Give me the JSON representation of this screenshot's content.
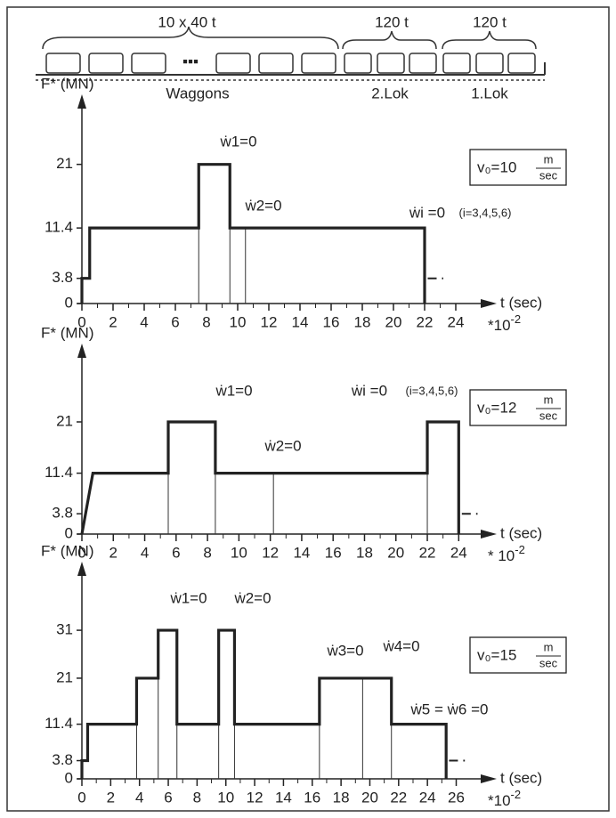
{
  "diagram": {
    "labels": [
      "10 x 40 t",
      "120 t",
      "120 t"
    ],
    "captions": [
      "Waggons",
      "2.Lok",
      "1.Lok"
    ]
  },
  "chart_data": [
    {
      "type": "line",
      "y_label": "F* (MN)",
      "x_label": "t (sec)",
      "x_note": "*10",
      "x_note_exp": "-2",
      "box": {
        "text": "v₀=10",
        "num": "m",
        "den": "sec"
      },
      "xlim": [
        0,
        25.6
      ],
      "xticks": [
        0,
        2,
        4,
        6,
        8,
        10,
        12,
        14,
        16,
        18,
        20,
        22,
        24
      ],
      "ylim": [
        0,
        27
      ],
      "yticks": [
        0,
        3.8,
        11.4,
        21
      ],
      "series": [
        {
          "x": [
            0,
            0,
            0.5,
            0.5,
            7.5,
            7.5,
            9.5,
            9.5,
            22,
            22
          ],
          "values": [
            0,
            3.8,
            3.8,
            11.4,
            11.4,
            21,
            21,
            11.4,
            11.4,
            0
          ],
          "style": "solid"
        },
        {
          "x": [
            22.2,
            23.2
          ],
          "values": [
            3.8,
            3.8
          ],
          "style": "dashed"
        }
      ],
      "guides_x": [
        7.5,
        9.5,
        10.5
      ],
      "annotations": [
        "ẇ1=0",
        "ẇ2=0",
        "ẇi =0",
        "(i=3,4,5,6)"
      ]
    },
    {
      "type": "line",
      "y_label": "F* (MN)",
      "x_label": "t (sec)",
      "x_note": "* 10",
      "x_note_exp": "-2",
      "box": {
        "text": "v₀=12",
        "num": "m",
        "den": "sec"
      },
      "xlim": [
        0,
        25.4
      ],
      "xticks": [
        0,
        2,
        4,
        6,
        8,
        10,
        12,
        14,
        16,
        18,
        20,
        22,
        24
      ],
      "ylim": [
        0,
        30
      ],
      "yticks": [
        0,
        3.8,
        11.4,
        21
      ],
      "series": [
        {
          "x": [
            0,
            0.7,
            5.5,
            5.5,
            8.5,
            8.5,
            22,
            22,
            24,
            24
          ],
          "values": [
            0,
            11.4,
            11.4,
            21,
            21,
            11.4,
            11.4,
            21,
            21,
            0
          ],
          "style": "solid"
        },
        {
          "x": [
            24.2,
            25.2
          ],
          "values": [
            3.8,
            3.8
          ],
          "style": "dashed"
        }
      ],
      "guides_x": [
        5.5,
        8.5,
        12.2,
        22
      ],
      "annotations": [
        "ẇ1=0",
        "ẇ2=0",
        "ẇi =0",
        "(i=3,4,5,6)"
      ]
    },
    {
      "type": "line",
      "y_label": "F* (MN)",
      "x_label": "t (sec)",
      "x_note": "*10",
      "x_note_exp": "-2",
      "box": {
        "text": "v₀=15",
        "num": "m",
        "den": "sec"
      },
      "xlim": [
        0,
        27.7
      ],
      "xticks": [
        0,
        2,
        4,
        6,
        8,
        10,
        12,
        14,
        16,
        18,
        20,
        22,
        24,
        26
      ],
      "ylim": [
        0,
        39
      ],
      "yticks": [
        0,
        3.8,
        11.4,
        21,
        31
      ],
      "series": [
        {
          "x": [
            0,
            0,
            0.4,
            0.4,
            3.8,
            3.8,
            5.3,
            5.3,
            6.6,
            6.6,
            9.5,
            9.5,
            10.6,
            10.6,
            16.5,
            16.5,
            21.5,
            21.5,
            25.3,
            25.3
          ],
          "values": [
            0,
            3.8,
            3.8,
            11.4,
            11.4,
            21,
            21,
            31,
            31,
            11.4,
            11.4,
            31,
            31,
            11.4,
            11.4,
            21,
            21,
            11.4,
            11.4,
            0
          ],
          "style": "solid"
        },
        {
          "x": [
            25.5,
            26.6
          ],
          "values": [
            3.8,
            3.8
          ],
          "style": "dashed"
        }
      ],
      "guides_x": [
        3.8,
        5.3,
        6.6,
        9.5,
        10.6,
        16.5,
        19.5,
        21.5
      ],
      "annotations": [
        "ẇ1=0",
        "ẇ2=0",
        "ẇ3=0",
        "ẇ4=0",
        "ẇ5 = ẇ6 =0"
      ]
    }
  ]
}
